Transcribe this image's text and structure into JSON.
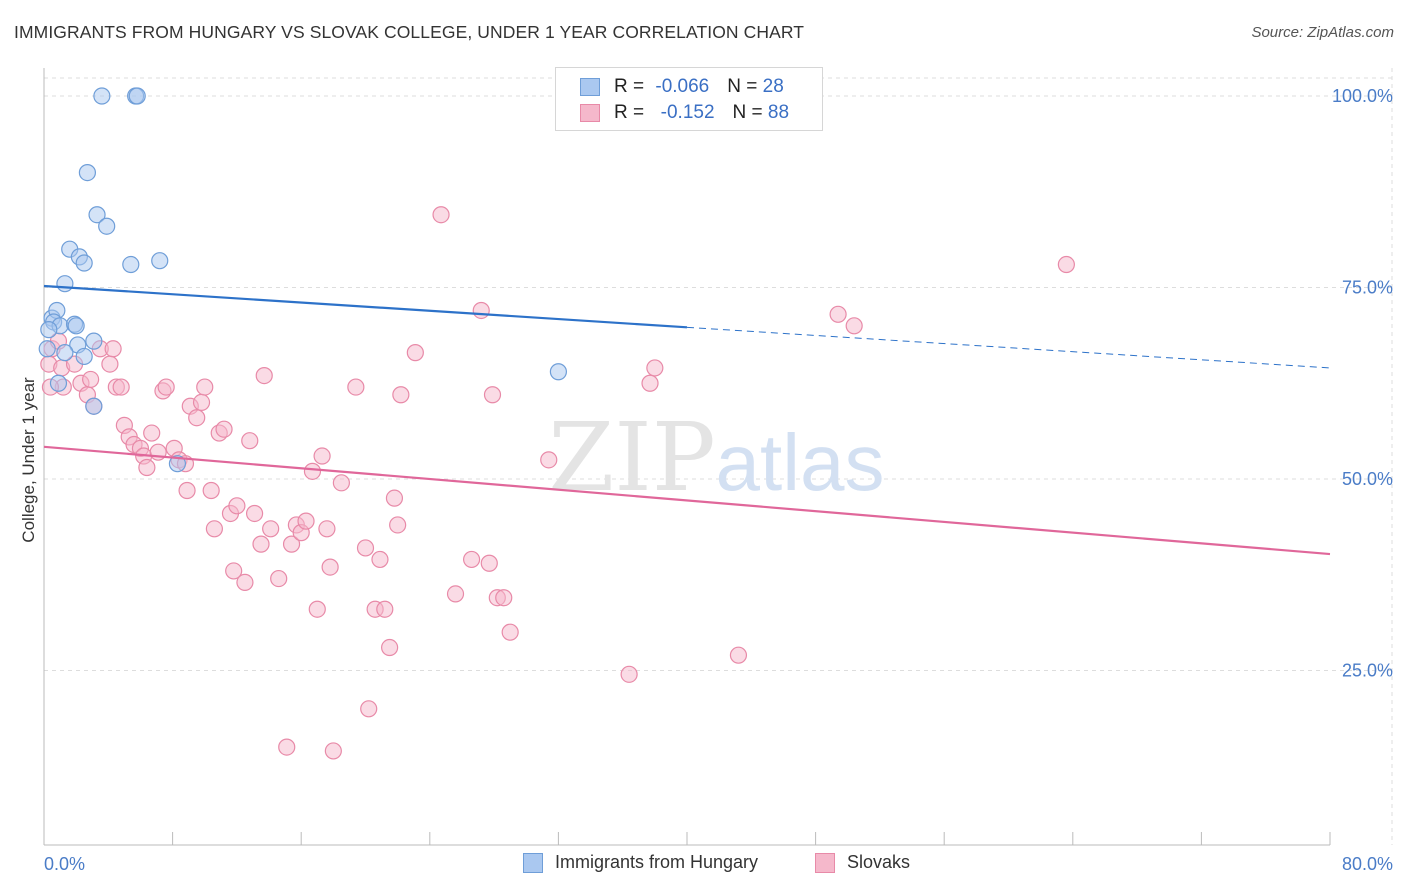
{
  "title": "IMMIGRANTS FROM HUNGARY VS SLOVAK COLLEGE, UNDER 1 YEAR CORRELATION CHART",
  "source": "Source: ZipAtlas.com",
  "watermark": {
    "zip": "ZIP",
    "atlas": "atlas"
  },
  "colors": {
    "blue_fill": "#aac8f0",
    "blue_stroke": "#6f9ed8",
    "blue_line": "#2d72c9",
    "pink_fill": "#f5b8cb",
    "pink_stroke": "#e88aa8",
    "pink_line": "#e0679a",
    "grid": "#dddddd",
    "tick_text": "#4a7cc7"
  },
  "legend_top": [
    {
      "r_label": "R = ",
      "r_value": "-0.066",
      "n_label": "N = ",
      "n_value": "28",
      "swatch": "blue"
    },
    {
      "r_label": "R = ",
      "r_value": " -0.152",
      "n_label": "N = ",
      "n_value": "88",
      "swatch": "pink"
    }
  ],
  "legend_bottom": [
    {
      "label": "Immigrants from Hungary",
      "swatch": "blue"
    },
    {
      "label": "Slovaks",
      "swatch": "pink"
    }
  ],
  "chart_data": {
    "type": "scatter",
    "title": "IMMIGRANTS FROM HUNGARY VS SLOVAK COLLEGE, UNDER 1 YEAR CORRELATION CHART",
    "xlabel": "",
    "ylabel": "College, Under 1 year",
    "xlim": [
      0,
      80
    ],
    "ylim": [
      0,
      105
    ],
    "x_tick_labels": [
      {
        "value": 0,
        "label": "0.0%"
      },
      {
        "value": 80,
        "label": "80.0%"
      }
    ],
    "x_minor_ticks": [
      8,
      16,
      24,
      32,
      40,
      48,
      56,
      64,
      72,
      80
    ],
    "y_ticks": [
      {
        "value": 25,
        "label": "25.0%"
      },
      {
        "value": 50,
        "label": "50.0%"
      },
      {
        "value": 75,
        "label": "75.0%"
      },
      {
        "value": 100,
        "label": "100.0%"
      }
    ],
    "series": [
      {
        "name": "Immigrants from Hungary",
        "color": "blue",
        "R": -0.066,
        "N": 28,
        "points": [
          [
            3.6,
            100.0
          ],
          [
            5.7,
            100.0
          ],
          [
            5.8,
            100.0
          ],
          [
            2.7,
            90.0
          ],
          [
            3.3,
            84.5
          ],
          [
            3.9,
            83.0
          ],
          [
            1.6,
            80.0
          ],
          [
            2.2,
            79.0
          ],
          [
            2.5,
            78.2
          ],
          [
            5.4,
            78.0
          ],
          [
            7.2,
            78.5
          ],
          [
            1.3,
            75.5
          ],
          [
            0.5,
            71.0
          ],
          [
            0.8,
            72.0
          ],
          [
            0.6,
            70.5
          ],
          [
            1.0,
            70.0
          ],
          [
            1.9,
            70.2
          ],
          [
            0.3,
            69.5
          ],
          [
            2.0,
            70.0
          ],
          [
            3.1,
            68.0
          ],
          [
            2.1,
            67.5
          ],
          [
            1.3,
            66.5
          ],
          [
            2.5,
            66.0
          ],
          [
            0.9,
            62.5
          ],
          [
            3.1,
            59.5
          ],
          [
            8.3,
            52.0
          ],
          [
            32.0,
            64.0
          ],
          [
            0.2,
            67.0
          ]
        ],
        "trend": {
          "x_start": 0,
          "y_start": 75.2,
          "x_solid_end": 40,
          "y_solid_end": 69.8,
          "x_dashed_end": 80,
          "y_dashed_end": 64.5
        }
      },
      {
        "name": "Slovaks",
        "color": "pink",
        "R": -0.152,
        "N": 88,
        "points": [
          [
            0.5,
            67.0
          ],
          [
            0.3,
            65.0
          ],
          [
            1.1,
            64.5
          ],
          [
            0.9,
            68.0
          ],
          [
            1.2,
            62.0
          ],
          [
            1.9,
            65.0
          ],
          [
            2.3,
            62.5
          ],
          [
            2.7,
            61.0
          ],
          [
            2.9,
            63.0
          ],
          [
            3.1,
            59.5
          ],
          [
            3.5,
            67.0
          ],
          [
            4.1,
            65.0
          ],
          [
            4.3,
            67.0
          ],
          [
            4.5,
            62.0
          ],
          [
            4.8,
            62.0
          ],
          [
            5.0,
            57.0
          ],
          [
            5.3,
            55.5
          ],
          [
            5.6,
            54.5
          ],
          [
            6.0,
            54.0
          ],
          [
            6.2,
            53.0
          ],
          [
            6.4,
            51.5
          ],
          [
            6.7,
            56.0
          ],
          [
            7.1,
            53.5
          ],
          [
            7.4,
            61.5
          ],
          [
            7.6,
            62.0
          ],
          [
            8.1,
            54.0
          ],
          [
            8.4,
            52.5
          ],
          [
            8.8,
            52.0
          ],
          [
            8.9,
            48.5
          ],
          [
            9.1,
            59.5
          ],
          [
            9.5,
            58.0
          ],
          [
            9.8,
            60.0
          ],
          [
            10.0,
            62.0
          ],
          [
            10.4,
            48.5
          ],
          [
            10.6,
            43.5
          ],
          [
            10.9,
            56.0
          ],
          [
            11.2,
            56.5
          ],
          [
            11.6,
            45.5
          ],
          [
            11.8,
            38.0
          ],
          [
            12.0,
            46.5
          ],
          [
            12.5,
            36.5
          ],
          [
            12.8,
            55.0
          ],
          [
            13.1,
            45.5
          ],
          [
            13.5,
            41.5
          ],
          [
            13.7,
            63.5
          ],
          [
            14.1,
            43.5
          ],
          [
            14.6,
            37.0
          ],
          [
            15.1,
            15.0
          ],
          [
            15.4,
            41.5
          ],
          [
            15.7,
            44.0
          ],
          [
            16.0,
            43.0
          ],
          [
            16.3,
            44.5
          ],
          [
            16.7,
            51.0
          ],
          [
            17.0,
            33.0
          ],
          [
            17.3,
            53.0
          ],
          [
            17.6,
            43.5
          ],
          [
            17.8,
            38.5
          ],
          [
            18.0,
            14.5
          ],
          [
            18.5,
            49.5
          ],
          [
            19.4,
            62.0
          ],
          [
            20.0,
            41.0
          ],
          [
            20.2,
            20.0
          ],
          [
            20.6,
            33.0
          ],
          [
            20.9,
            39.5
          ],
          [
            21.2,
            33.0
          ],
          [
            21.5,
            28.0
          ],
          [
            21.8,
            47.5
          ],
          [
            22.0,
            44.0
          ],
          [
            22.2,
            61.0
          ],
          [
            23.1,
            66.5
          ],
          [
            24.7,
            84.5
          ],
          [
            25.6,
            35.0
          ],
          [
            26.6,
            39.5
          ],
          [
            27.2,
            72.0
          ],
          [
            27.7,
            39.0
          ],
          [
            27.9,
            61.0
          ],
          [
            28.2,
            34.5
          ],
          [
            28.6,
            34.5
          ],
          [
            29.0,
            30.0
          ],
          [
            31.4,
            52.5
          ],
          [
            36.4,
            24.5
          ],
          [
            37.7,
            62.5
          ],
          [
            38.0,
            64.5
          ],
          [
            43.2,
            27.0
          ],
          [
            49.4,
            71.5
          ],
          [
            50.4,
            70.0
          ],
          [
            63.6,
            78.0
          ],
          [
            0.4,
            62.0
          ]
        ],
        "trend": {
          "x_start": 0,
          "y_start": 54.2,
          "x_end": 80,
          "y_end": 40.2
        }
      }
    ],
    "grid": true,
    "legend_position": "top-center"
  }
}
